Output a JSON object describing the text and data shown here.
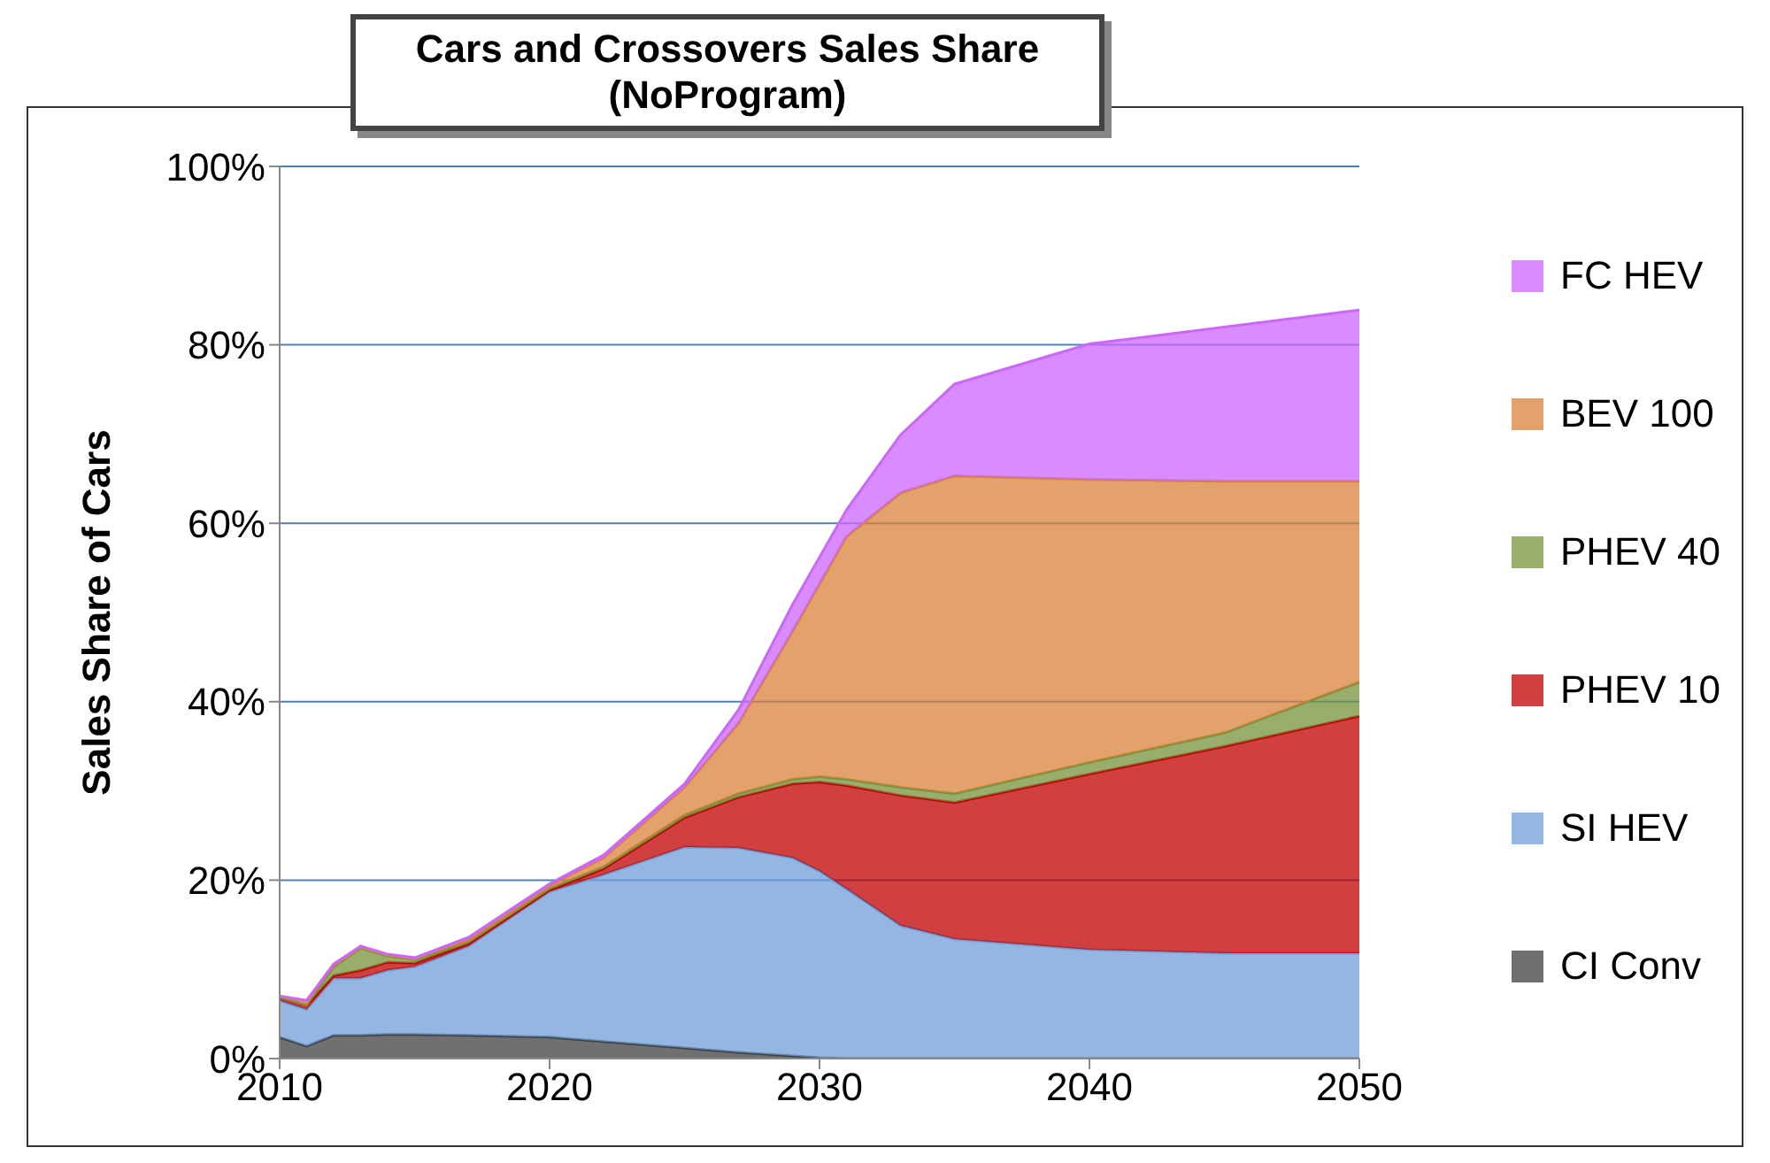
{
  "chart_data": {
    "type": "area",
    "title": "Cars and Crossovers Sales Share\n(NoProgram)",
    "ylabel": "Sales Share of Cars",
    "stacked": true,
    "x": [
      2010,
      2011,
      2012,
      2013,
      2014,
      2015,
      2017,
      2020,
      2022,
      2025,
      2027,
      2029,
      2030,
      2031,
      2033,
      2035,
      2040,
      2045,
      2050
    ],
    "series": [
      {
        "name": "CI Conv",
        "color": "#404040",
        "values": [
          2.4,
          1.4,
          2.6,
          2.6,
          2.7,
          2.7,
          2.6,
          2.4,
          1.9,
          1.2,
          0.7,
          0.3,
          0.1,
          0,
          0,
          0,
          0,
          0,
          0
        ]
      },
      {
        "name": "SI HEV",
        "color": "#6f9fd8",
        "values": [
          4.1,
          4.1,
          6.4,
          6.4,
          7.2,
          7.6,
          10.0,
          16.3,
          18.7,
          22.5,
          22.9,
          22.2,
          20.9,
          19.0,
          14.9,
          13.4,
          12.2,
          11.8,
          11.8
        ]
      },
      {
        "name": "PHEV 10",
        "color": "#c00000",
        "values": [
          0.4,
          0.5,
          0.3,
          0.9,
          0.9,
          0.4,
          0.3,
          0.2,
          0.7,
          3.3,
          5.7,
          8.3,
          10.0,
          11.6,
          14.6,
          15.3,
          19.7,
          23.2,
          26.6
        ]
      },
      {
        "name": "PHEV 40",
        "color": "#77933c",
        "values": [
          0,
          0,
          1.0,
          2.5,
          0.7,
          0.4,
          0.2,
          0.2,
          0.2,
          0.3,
          0.4,
          0.5,
          0.6,
          0.7,
          0.9,
          1.0,
          1.3,
          1.5,
          3.8
        ]
      },
      {
        "name": "BEV 100",
        "color": "#d9823b",
        "values": [
          0.1,
          0.5,
          0.2,
          0.1,
          0.1,
          0.1,
          0.3,
          0.3,
          1.0,
          3.1,
          7.9,
          16.6,
          21.6,
          27.2,
          33.0,
          35.6,
          31.7,
          28.2,
          22.5
        ]
      },
      {
        "name": "FC HEV",
        "color": "#cc66ff",
        "values": [
          0,
          0,
          0.1,
          0.1,
          0.1,
          0.1,
          0.2,
          0.2,
          0.3,
          0.4,
          1.5,
          3.0,
          3.0,
          3.0,
          6.5,
          10.3,
          15.2,
          17.3,
          19.2
        ]
      }
    ],
    "xlim": [
      2010,
      2050
    ],
    "xticks": [
      2010,
      2020,
      2030,
      2040,
      2050
    ],
    "ylim": [
      0,
      100
    ],
    "yticks": [
      {
        "value": 0,
        "label": "0%"
      },
      {
        "value": 20,
        "label": "20%"
      },
      {
        "value": 40,
        "label": "40%"
      },
      {
        "value": 60,
        "label": "60%"
      },
      {
        "value": 80,
        "label": "80%"
      },
      {
        "value": 100,
        "label": "100%"
      }
    ],
    "grid": "y",
    "legend": "right"
  }
}
